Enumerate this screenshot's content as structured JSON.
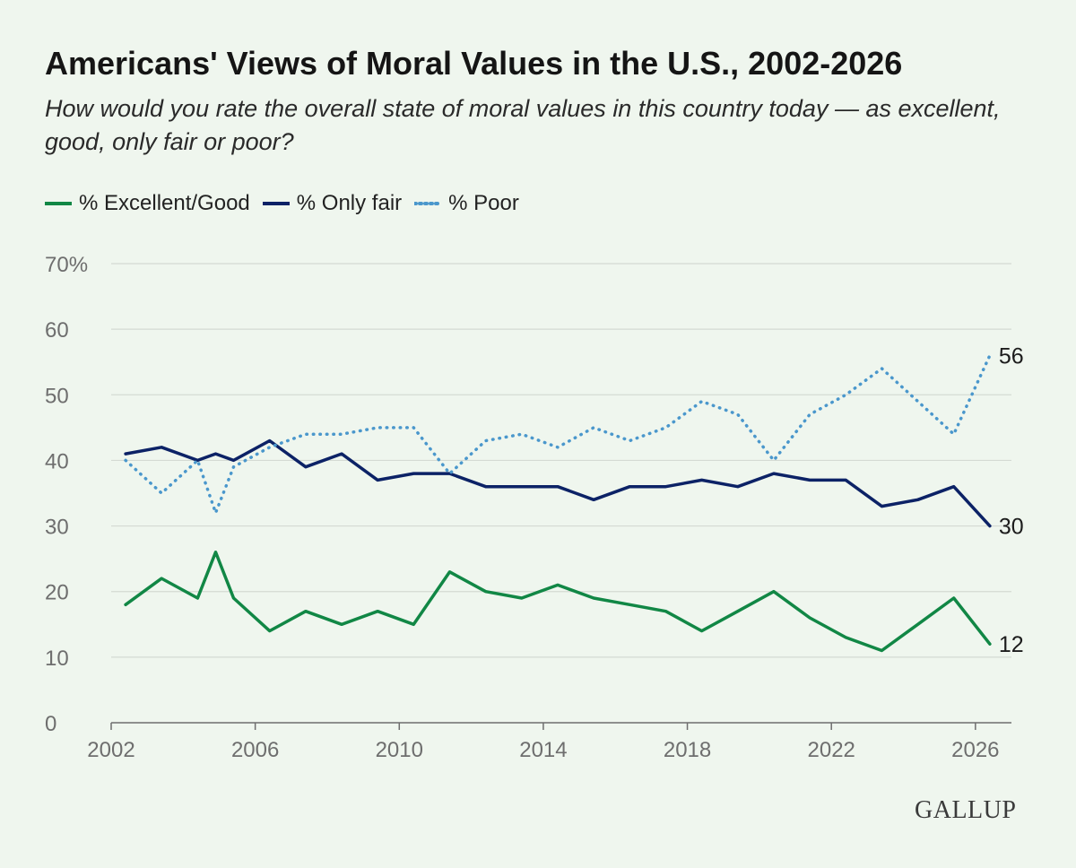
{
  "title": "Americans' Views of Moral Values in the U.S., 2002-2026",
  "subtitle": "How would you rate the overall state of moral values in this country today — as excellent, good, only fair or poor?",
  "brand": "GALLUP",
  "colors": {
    "excellent_good": "#118745",
    "only_fair": "#0c2266",
    "poor": "#4a97cc",
    "grid": "#d4dad3",
    "axis": "#6e6e6e",
    "background": "#eff6ee"
  },
  "legend": [
    {
      "label": "% Excellent/Good",
      "series": "excellent_good",
      "style": "solid"
    },
    {
      "label": "% Only fair",
      "series": "only_fair",
      "style": "solid"
    },
    {
      "label": "% Poor",
      "series": "poor",
      "style": "dotted"
    }
  ],
  "chart_data": {
    "type": "line",
    "title": "Americans' Views of Moral Values in the U.S., 2002-2026",
    "xlabel": "",
    "ylabel": "",
    "xlim": [
      2002,
      2027
    ],
    "ylim": [
      0,
      70
    ],
    "x_ticks": [
      "2002",
      "2006",
      "2010",
      "2014",
      "2018",
      "2022",
      "2026"
    ],
    "y_ticks": [
      "0",
      "10",
      "20",
      "30",
      "40",
      "50",
      "60",
      "70%"
    ],
    "grid": true,
    "legend_position": "top-left",
    "x": [
      2002.4,
      2003.4,
      2004.4,
      2004.9,
      2005.4,
      2006.4,
      2007.4,
      2008.4,
      2009.4,
      2010.4,
      2011.4,
      2012.4,
      2013.4,
      2014.4,
      2015.4,
      2016.4,
      2017.4,
      2018.4,
      2019.4,
      2020.4,
      2021.4,
      2022.4,
      2023.4,
      2024.4,
      2025.4,
      2026.4
    ],
    "series": [
      {
        "name": "% Excellent/Good",
        "key": "excellent_good",
        "values": [
          18,
          22,
          19,
          26,
          19,
          14,
          17,
          15,
          17,
          15,
          23,
          20,
          19,
          21,
          19,
          18,
          17,
          14,
          17,
          20,
          16,
          13,
          11,
          15,
          19,
          12
        ],
        "end_label": "12"
      },
      {
        "name": "% Only fair",
        "key": "only_fair",
        "values": [
          41,
          42,
          40,
          41,
          40,
          43,
          39,
          41,
          37,
          38,
          38,
          36,
          36,
          36,
          34,
          36,
          36,
          37,
          36,
          38,
          37,
          37,
          33,
          34,
          36,
          30
        ],
        "end_label": "30"
      },
      {
        "name": "% Poor",
        "key": "poor",
        "values": [
          40,
          35,
          40,
          32,
          39,
          42,
          44,
          44,
          45,
          45,
          38,
          43,
          44,
          42,
          45,
          43,
          45,
          49,
          47,
          40,
          47,
          50,
          54,
          49,
          44,
          56
        ],
        "end_label": "56"
      }
    ]
  }
}
